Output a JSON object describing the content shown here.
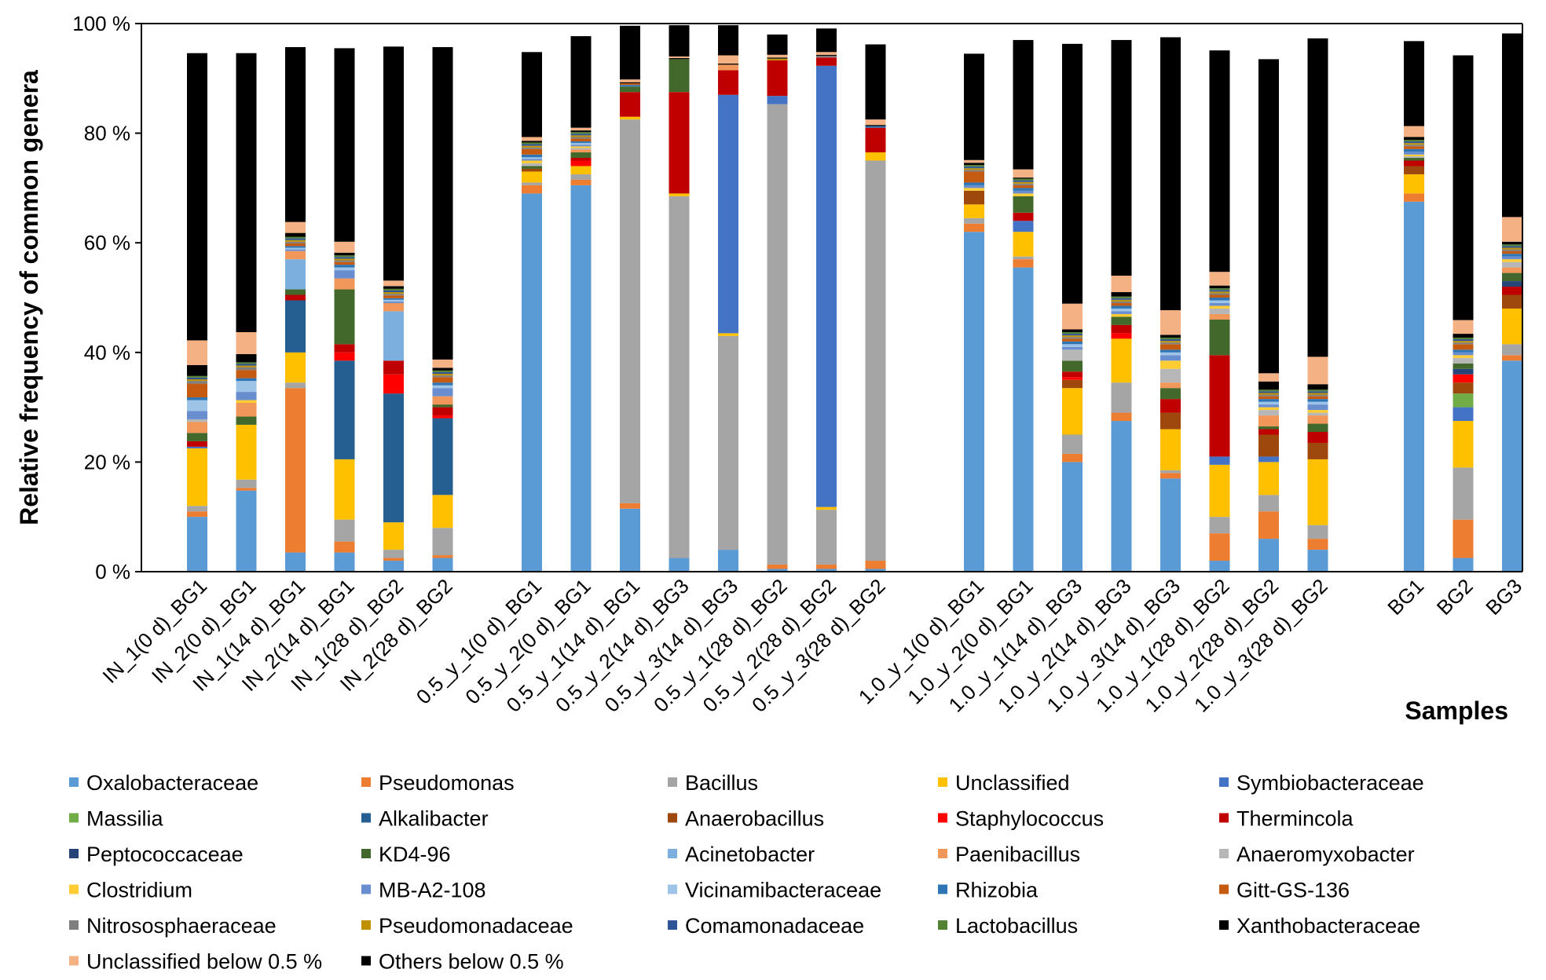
{
  "chart_data": {
    "type": "bar",
    "stacked": true,
    "ylabel": "Relative frequency of common genera",
    "xlabel": "Samples",
    "ylim": [
      0,
      100
    ],
    "y_tick_labels": [
      "0 %",
      "20 %",
      "40 %",
      "60 %",
      "80 %",
      "100 %"
    ],
    "y_tick_values": [
      0,
      20,
      40,
      60,
      80,
      100
    ],
    "groups": [
      {
        "label": "IN",
        "categories": [
          "IN_1(0 d)_BG1",
          "IN_2(0 d)_BG1",
          "IN_1(14 d)_BG1",
          "IN_2(14 d)_BG1",
          "IN_1(28 d)_BG2",
          "IN_2(28 d)_BG2"
        ]
      },
      {
        "label": "0.5_y",
        "categories": [
          "0.5_y_1(0 d)_BG1",
          "0.5_y_2(0 d)_BG1",
          "0.5_y_1(14 d)_BG1",
          "0.5_y_2(14 d)_BG3",
          "0.5_y_3(14 d)_BG3",
          "0.5_y_1(28 d)_BG2",
          "0.5_y_2(28 d)_BG2",
          "0.5_y_3(28 d)_BG2"
        ]
      },
      {
        "label": "1.0_y",
        "categories": [
          "1.0_y_1(0 d)_BG1",
          "1.0_y_2(0 d)_BG1",
          "1.0_y_1(14 d)_BG3",
          "1.0_y_2(14 d)_BG3",
          "1.0_y_3(14 d)_BG3",
          "1.0_y_1(28 d)_BG2",
          "1.0_y_2(28 d)_BG2",
          "1.0_y_3(28 d)_BG2"
        ]
      },
      {
        "label": "BG",
        "categories": [
          "BG1",
          "BG2",
          "BG3"
        ]
      }
    ],
    "series": [
      {
        "name": "Oxalobacteraceae",
        "color": "#5B9BD5",
        "values": [
          10,
          14.8,
          3.5,
          3.5,
          2,
          2.5,
          69,
          70.5,
          11.5,
          2.5,
          4,
          0.5,
          0.5,
          0.5,
          62,
          55.5,
          20,
          27.5,
          17,
          2,
          6,
          4,
          67.5,
          2.5,
          38.5
        ]
      },
      {
        "name": "Pseudomonas",
        "color": "#ED7D31",
        "values": [
          1,
          0.5,
          30,
          2,
          0.5,
          0.5,
          1.5,
          1,
          1,
          0,
          0,
          0.8,
          0.8,
          1.5,
          1.5,
          1.5,
          1.5,
          1.5,
          1,
          5,
          5,
          2,
          1.5,
          7,
          1
        ]
      },
      {
        "name": "Bacillus",
        "color": "#A5A5A5",
        "values": [
          1,
          1.5,
          1,
          4,
          1.5,
          5,
          0.5,
          1,
          70,
          66,
          39,
          84,
          10,
          73,
          1,
          0.5,
          3.5,
          5.5,
          0.5,
          3,
          3,
          2.5,
          0,
          9.5,
          2
        ]
      },
      {
        "name": "Unclassified",
        "color": "#FFC000",
        "values": [
          10.5,
          10,
          5.5,
          11,
          5,
          6,
          2,
          1.5,
          0.5,
          0.5,
          0.5,
          0,
          0.5,
          1.5,
          2.5,
          4.5,
          8.5,
          8,
          7.5,
          9.5,
          6,
          12,
          3.5,
          8.5,
          6.5
        ]
      },
      {
        "name": "Symbiobacteraceae",
        "color": "#4472C4",
        "values": [
          0.3,
          0,
          0,
          0,
          0,
          0,
          0,
          0,
          0,
          0,
          43.5,
          1.5,
          80.5,
          0,
          0,
          2,
          0,
          0,
          0,
          1.5,
          1,
          0,
          0,
          2.5,
          0
        ]
      },
      {
        "name": "Massilia",
        "color": "#70AD47",
        "values": [
          0,
          0,
          0,
          0,
          0,
          0,
          0,
          0,
          0,
          0,
          0,
          0,
          0,
          0,
          0,
          0,
          0,
          0,
          0,
          0,
          0,
          0,
          0,
          2.5,
          0
        ]
      },
      {
        "name": "Alkalibacter",
        "color": "#255E91",
        "values": [
          0,
          0,
          9.5,
          18,
          23.5,
          14,
          0,
          0,
          0,
          0,
          0,
          0,
          0,
          0,
          0,
          0,
          0,
          0,
          0,
          0,
          0,
          0,
          0,
          0,
          0
        ]
      },
      {
        "name": "Anaerobacillus",
        "color": "#9E480E",
        "values": [
          0,
          0,
          0,
          0,
          0,
          0,
          0.5,
          0,
          0,
          0,
          0,
          0,
          0,
          0,
          2.5,
          0,
          1.5,
          0,
          3,
          0,
          4,
          3,
          1.5,
          2,
          2.5
        ]
      },
      {
        "name": "Staphylococcus",
        "color": "#FF0000",
        "values": [
          0,
          0,
          0,
          1.5,
          3.5,
          0.5,
          0,
          1,
          0,
          0,
          0,
          0,
          0,
          0,
          0,
          0,
          0.5,
          1,
          0,
          0,
          0,
          0,
          0,
          1.5,
          0
        ]
      },
      {
        "name": "Thermincola",
        "color": "#C00000",
        "values": [
          1,
          0,
          1,
          1.5,
          2.5,
          1.5,
          0,
          0.5,
          4.5,
          18.5,
          4.5,
          6.5,
          1.5,
          4.5,
          0,
          1.5,
          1,
          1.5,
          2.5,
          18.5,
          1,
          2,
          1,
          0,
          1.5
        ]
      },
      {
        "name": "Peptococcaceae",
        "color": "#264478",
        "values": [
          0,
          0,
          0,
          0,
          0,
          0,
          0,
          0,
          0,
          0,
          0,
          0,
          0,
          0,
          0,
          0,
          0,
          0,
          0,
          0,
          0,
          0,
          0,
          1,
          1
        ]
      },
      {
        "name": "KD4-96",
        "color": "#43682B",
        "values": [
          1.5,
          1.5,
          1,
          10,
          0,
          0.5,
          0.5,
          1,
          1,
          6,
          0,
          0,
          0,
          0,
          0,
          3,
          2,
          1.5,
          2,
          6.5,
          0.5,
          1.5,
          0.5,
          1,
          1.5
        ]
      },
      {
        "name": "Acinetobacter",
        "color": "#7CAFDD",
        "values": [
          0,
          0,
          5.5,
          0,
          9,
          0,
          0,
          0,
          0,
          0,
          0,
          0,
          0,
          0,
          0,
          0,
          0,
          0,
          0,
          0,
          0,
          0,
          0,
          0,
          0
        ]
      },
      {
        "name": "Paenibacillus",
        "color": "#F1975A",
        "values": [
          2,
          2.5,
          1.5,
          2,
          1.5,
          1.5,
          0,
          0.5,
          0,
          0,
          1,
          0,
          0,
          0,
          0,
          0,
          0,
          0,
          1,
          1,
          2,
          1.5,
          0,
          0,
          1
        ]
      },
      {
        "name": "Anaeromyxobacter",
        "color": "#B7B7B7",
        "values": [
          0.5,
          0,
          0,
          0,
          0,
          0,
          0.5,
          0.3,
          0,
          0,
          0,
          0,
          0,
          0,
          0,
          0,
          2,
          0,
          2.5,
          1,
          1,
          0.5,
          0.3,
          1,
          1
        ]
      },
      {
        "name": "Clostridium",
        "color": "#FFCD33",
        "values": [
          0,
          0.5,
          0,
          0,
          0,
          0,
          0.5,
          0.3,
          0,
          0,
          0,
          0,
          0,
          0,
          0.5,
          0.5,
          0,
          0.5,
          1.5,
          0.5,
          0.5,
          0.5,
          0.3,
          0.5,
          0.5
        ]
      },
      {
        "name": "MB-A2-108",
        "color": "#698ED0",
        "values": [
          1.5,
          1.5,
          0.3,
          1.5,
          0.3,
          1.5,
          0.3,
          0.3,
          0,
          0,
          0,
          0,
          0,
          0,
          0.5,
          0.5,
          0.5,
          0.5,
          1,
          0.5,
          0.5,
          1,
          0.5,
          0.5,
          0.5
        ]
      },
      {
        "name": "Vicinamibacteraceae",
        "color": "#9DC3E6",
        "values": [
          2,
          2,
          0.3,
          0.5,
          0.3,
          0.5,
          0.3,
          0.3,
          0,
          0,
          0,
          0,
          0,
          0,
          0,
          0,
          0.5,
          0.5,
          0.5,
          0.5,
          0.5,
          0.5,
          0,
          0,
          0
        ]
      },
      {
        "name": "Rhizobia",
        "color": "#2E75B6",
        "values": [
          0.5,
          0.5,
          0.3,
          0.5,
          0.3,
          0.5,
          0.5,
          0.3,
          0.3,
          0,
          0,
          0,
          0,
          0.3,
          0.5,
          0.5,
          0.5,
          0.5,
          0.5,
          0.5,
          0.5,
          0.5,
          0.5,
          0.5,
          0.5
        ]
      },
      {
        "name": "Gitt-GS-136",
        "color": "#C55A11",
        "values": [
          2.5,
          1.5,
          0.5,
          0.5,
          0.5,
          1,
          1,
          0.5,
          0.3,
          0,
          0,
          0,
          0,
          0,
          2,
          0.5,
          0.5,
          0.5,
          1,
          0.5,
          0.5,
          0.5,
          0.5,
          1,
          0.5
        ]
      },
      {
        "name": "Nitrososphaeraceae",
        "color": "#7F7F7F",
        "values": [
          0.5,
          0.5,
          0.3,
          0.3,
          0.3,
          0.3,
          0.3,
          0.3,
          0,
          0,
          0,
          0,
          0.3,
          0,
          0.3,
          0.3,
          0.3,
          0.3,
          0.3,
          0.3,
          0.3,
          0.3,
          0.3,
          0.3,
          0.3
        ]
      },
      {
        "name": "Pseudomonadaceae",
        "color": "#BF9000",
        "values": [
          0.3,
          0.3,
          0.3,
          0.3,
          0.3,
          0.3,
          0.3,
          0.3,
          0,
          0,
          0,
          0.3,
          0,
          0,
          0.3,
          0.3,
          0.3,
          0.3,
          0.3,
          0.3,
          0.3,
          0.3,
          0.3,
          0.3,
          0.3
        ]
      },
      {
        "name": "Comamonadaceae",
        "color": "#2F5597",
        "values": [
          0.3,
          0.3,
          0.3,
          0.3,
          0.3,
          0.3,
          0.3,
          0.3,
          0,
          0,
          0,
          0,
          0,
          0,
          0.3,
          0.3,
          0.3,
          0.3,
          0.3,
          0.3,
          0.3,
          0.3,
          0.3,
          0.3,
          0.3
        ]
      },
      {
        "name": "Lactobacillus",
        "color": "#548235",
        "values": [
          0.3,
          0.3,
          0.3,
          0.3,
          0.3,
          0.3,
          0.3,
          0.3,
          0,
          0,
          0,
          0,
          0,
          0,
          0.3,
          0.3,
          0.3,
          0.3,
          0.3,
          0.3,
          0.3,
          0.3,
          0.3,
          0.3,
          0.3
        ]
      },
      {
        "name": "Xanthobacteraceae",
        "color": "#000000",
        "values": [
          2,
          1.5,
          0.7,
          0.5,
          0.5,
          0.5,
          0.3,
          0.3,
          0.2,
          0.2,
          0.2,
          0.2,
          0.2,
          0.2,
          0.4,
          0.2,
          0.5,
          0.8,
          0.5,
          0.5,
          1.5,
          1,
          0.5,
          0.7,
          0.5
        ]
      },
      {
        "name": "Unclassified below 0.5 %",
        "color": "#F4B183",
        "values": [
          4.5,
          4,
          2,
          2,
          1,
          1.5,
          0.7,
          0.5,
          0.5,
          0.3,
          1.5,
          0.5,
          0.5,
          1,
          0.5,
          1.5,
          4.7,
          3,
          4.5,
          2.5,
          1.5,
          5,
          2,
          2.5,
          4.5
        ]
      },
      {
        "name": "Others below 0.5 %",
        "color": "#000000",
        "values": [
          52.4,
          50.9,
          31.9,
          35.3,
          42.7,
          57,
          15.5,
          16.7,
          9.8,
          5.7,
          5.5,
          3.7,
          4.3,
          13.7,
          19.4,
          23.6,
          47.4,
          43,
          49.8,
          40.4,
          57.3,
          58.1,
          15.5,
          48.3,
          33.5
        ]
      }
    ]
  }
}
